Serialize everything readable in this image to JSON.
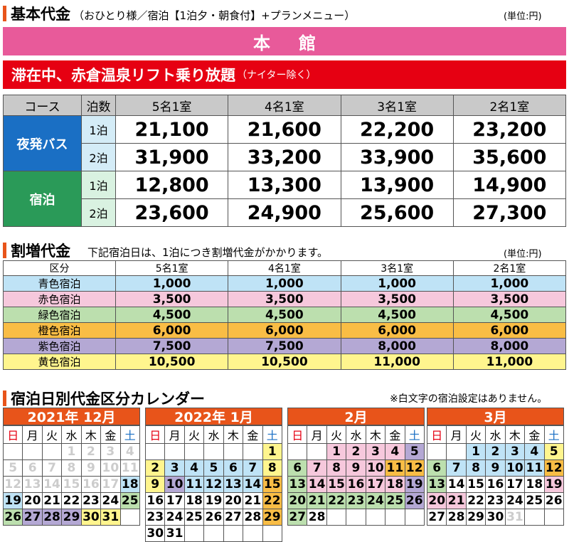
{
  "section1": {
    "title": "基本代金",
    "subtitle": "（おひとり様／宿泊【1泊夕・朝食付】+プランメニュー）",
    "unit": "(単位:円)"
  },
  "honkan": "本館",
  "lift_banner": {
    "main": "滞在中、赤倉温泉リフト乗り放題",
    "sub": "（ナイター除く）"
  },
  "basic_table": {
    "headers": [
      "コース",
      "泊数",
      "5名1室",
      "4名1室",
      "3名1室",
      "2名1室"
    ],
    "groups": [
      {
        "course": "夜発バス",
        "rows": [
          {
            "nights": "1泊",
            "prices": [
              "21,100",
              "21,600",
              "22,200",
              "23,200"
            ]
          },
          {
            "nights": "2泊",
            "prices": [
              "31,900",
              "33,200",
              "33,900",
              "35,600"
            ]
          }
        ]
      },
      {
        "course": "宿泊",
        "rows": [
          {
            "nights": "1泊",
            "prices": [
              "12,800",
              "13,300",
              "13,900",
              "14,900"
            ]
          },
          {
            "nights": "2泊",
            "prices": [
              "23,600",
              "24,900",
              "25,600",
              "27,300"
            ]
          }
        ]
      }
    ]
  },
  "section2": {
    "title": "割増代金",
    "subtitle": "下記宿泊日は、1泊につき割増代金がかかります。",
    "unit": "(単位:円)"
  },
  "surcharge_table": {
    "headers": [
      "区分",
      "5名1室",
      "4名1室",
      "3名1室",
      "2名1室"
    ],
    "rows": [
      {
        "label": "青色宿泊",
        "color": "#bfe3f6",
        "values": [
          "1,000",
          "1,000",
          "1,000",
          "1,000"
        ]
      },
      {
        "label": "赤色宿泊",
        "color": "#f6c8dc",
        "values": [
          "3,500",
          "3,500",
          "3,500",
          "3,500"
        ]
      },
      {
        "label": "緑色宿泊",
        "color": "#bcdfae",
        "values": [
          "4,500",
          "4,500",
          "4,500",
          "4,500"
        ]
      },
      {
        "label": "橙色宿泊",
        "color": "#f9bd45",
        "values": [
          "6,000",
          "6,000",
          "6,000",
          "6,000"
        ]
      },
      {
        "label": "紫色宿泊",
        "color": "#b4a8d4",
        "values": [
          "7,500",
          "7,500",
          "8,000",
          "8,000"
        ]
      },
      {
        "label": "黄色宿泊",
        "color": "#fff58e",
        "values": [
          "10,500",
          "10,500",
          "11,000",
          "11,000"
        ]
      }
    ]
  },
  "section3": {
    "title": "宿泊日別代金区分カレンダー",
    "note": "※白文字の宿泊設定はありません。"
  },
  "weekdays": [
    "日",
    "月",
    "火",
    "水",
    "木",
    "金",
    "土"
  ],
  "calendars": [
    {
      "title": "2021年 12月",
      "left": 4,
      "cells": [
        [
          "",
          "",
          "",
          "1w",
          "2w",
          "3w",
          "4w"
        ],
        [
          "5w",
          "6w",
          "7w",
          "8w",
          "9w",
          "10w",
          "11w"
        ],
        [
          "12w",
          "13w",
          "14w",
          "15w",
          "16w",
          "17w",
          "18b"
        ],
        [
          "19b",
          "20n",
          "21n",
          "22n",
          "23n",
          "24n",
          "25g"
        ],
        [
          "26g",
          "27p",
          "28p",
          "29p",
          "30y",
          "31y",
          ""
        ]
      ]
    },
    {
      "title": "2022年 1月",
      "left": 204,
      "cells": [
        [
          "",
          "",
          "",
          "",
          "",
          "",
          "1y"
        ],
        [
          "2y",
          "3b",
          "4b",
          "5b",
          "6b",
          "7b",
          "8y"
        ],
        [
          "9y",
          "10p",
          "11b",
          "12b",
          "13b",
          "14b",
          "15o"
        ],
        [
          "16n",
          "17n",
          "18n",
          "19n",
          "20n",
          "21n",
          "22o"
        ],
        [
          "23n",
          "24n",
          "25n",
          "26n",
          "27n",
          "28n",
          "29o"
        ],
        [
          "30n",
          "31n",
          "",
          "",
          "",
          "",
          ""
        ]
      ]
    },
    {
      "title": "2月",
      "left": 404,
      "cells": [
        [
          "",
          "",
          "1r",
          "2r",
          "3r",
          "4r",
          "5p"
        ],
        [
          "6g",
          "7r",
          "8r",
          "9r",
          "10r",
          "11o",
          "12o"
        ],
        [
          "13g",
          "14r",
          "15r",
          "16r",
          "17r",
          "18r",
          "19p"
        ],
        [
          "20g",
          "21g",
          "22g",
          "23g",
          "24g",
          "25g",
          "26p"
        ],
        [
          "27g",
          "28n",
          "",
          "",
          "",
          "",
          ""
        ]
      ]
    },
    {
      "title": "3月",
      "left": 600,
      "cells": [
        [
          "",
          "",
          "1b",
          "2b",
          "3b",
          "4b",
          "5y"
        ],
        [
          "6g",
          "7b",
          "8b",
          "9b",
          "10b",
          "11b",
          "12o"
        ],
        [
          "13g",
          "14n",
          "15n",
          "16n",
          "17n",
          "18n",
          "19r"
        ],
        [
          "20r",
          "21r",
          "22n",
          "23n",
          "24n",
          "25n",
          "26n"
        ],
        [
          "27n",
          "28n",
          "29n",
          "30n",
          "31w",
          "",
          ""
        ]
      ]
    }
  ]
}
